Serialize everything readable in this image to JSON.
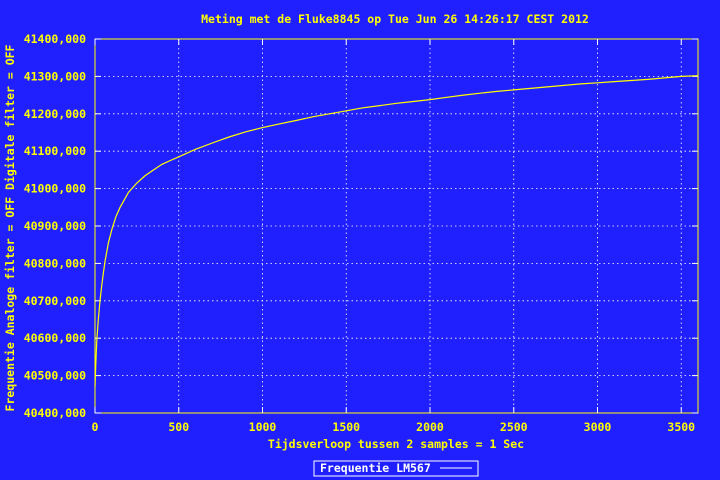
{
  "chart_data": {
    "type": "line",
    "title": "Meting met de Fluke8845 op Tue Jun 26 14:26:17 CEST 2012",
    "xlabel": "Tijdsverloop tussen 2 samples = 1 Sec",
    "ylabel": "Frequentie   Analoge filter = OFF   Digitale filter = OFF",
    "xlim": [
      0,
      3600
    ],
    "ylim": [
      40400,
      41400
    ],
    "x_ticks": [
      0,
      500,
      1000,
      1500,
      2000,
      2500,
      3000,
      3500
    ],
    "y_ticks": [
      40400,
      40500,
      40600,
      40700,
      40800,
      40900,
      41000,
      41100,
      41200,
      41300,
      41400
    ],
    "y_tick_labels": [
      "40400,000",
      "40500,000",
      "40600,000",
      "40700,000",
      "40800,000",
      "40900,000",
      "41000,000",
      "41100,000",
      "41200,000",
      "41300,000",
      "41400,000"
    ],
    "grid": true,
    "legend": "bottom-center",
    "series": [
      {
        "name": "Frequentie LM567",
        "color": "#ffff00",
        "x": [
          0,
          5,
          10,
          20,
          30,
          40,
          50,
          60,
          80,
          100,
          125,
          150,
          175,
          200,
          250,
          300,
          350,
          400,
          450,
          500,
          600,
          700,
          800,
          900,
          1000,
          1100,
          1200,
          1300,
          1400,
          1500,
          1600,
          1700,
          1800,
          1900,
          2000,
          2100,
          2200,
          2300,
          2400,
          2500,
          2600,
          2700,
          2800,
          2900,
          3000,
          3100,
          3200,
          3300,
          3400,
          3500,
          3600
        ],
        "y": [
          40470,
          40530,
          40590,
          40650,
          40700,
          40740,
          40775,
          40805,
          40855,
          40890,
          40925,
          40950,
          40970,
          40990,
          41015,
          41035,
          41050,
          41065,
          41075,
          41085,
          41105,
          41122,
          41138,
          41152,
          41163,
          41173,
          41182,
          41192,
          41200,
          41208,
          41216,
          41222,
          41228,
          41233,
          41238,
          41244,
          41250,
          41255,
          41260,
          41264,
          41268,
          41272,
          41276,
          41280,
          41283,
          41286,
          41289,
          41292,
          41296,
          41300,
          41302
        ]
      }
    ]
  }
}
